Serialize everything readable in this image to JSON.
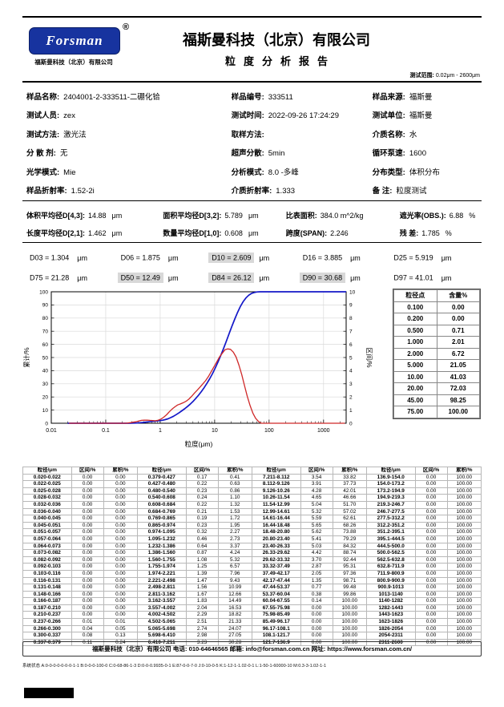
{
  "page": {
    "test_range_label": "测试范围:",
    "test_range_value": "0.02μm - 2600μm"
  },
  "header": {
    "logo_text": "Forsman",
    "registered_mark": "®",
    "logo_sub": "福斯曼科技（北京）有限公司",
    "company_title": "福斯曼科技（北京）有限公司",
    "report_title": "粒度分析报告"
  },
  "info": {
    "rows": [
      [
        {
          "label": "样品名称:",
          "value": "2404001-2-333511-二硼化铪"
        },
        {
          "label": "样品编号:",
          "value": "333511"
        },
        {
          "label": "样品来源:",
          "value": "福斯曼"
        }
      ],
      [
        {
          "label": "测试人员:",
          "value": "zex"
        },
        {
          "label": "测试时间:",
          "value": "2022-09-26 17:24:29"
        },
        {
          "label": "测试单位:",
          "value": "福斯曼"
        }
      ],
      [
        {
          "label": "测试方法:",
          "value": "激光法"
        },
        {
          "label": "取样方法:",
          "value": ""
        },
        {
          "label": "介质名称:",
          "value": "水"
        }
      ],
      [
        {
          "label": "分 散 剂:",
          "value": "无"
        },
        {
          "label": "超声分散:",
          "value": "5min"
        },
        {
          "label": "循环泵速:",
          "value": "1600"
        }
      ],
      [
        {
          "label": "光学模式:",
          "value": "Mie"
        },
        {
          "label": "分析模式:",
          "value": "8.0 -多峰"
        },
        {
          "label": "分布类型:",
          "value": "体积分布"
        }
      ],
      [
        {
          "label": "样品折射率:",
          "value": "1.52-2i"
        },
        {
          "label": "介质折射率:",
          "value": "1.333"
        },
        {
          "label": "备  注:",
          "value": "粒度测试"
        }
      ]
    ]
  },
  "averages": {
    "rows": [
      [
        {
          "label": "体积平均径D[4,3]:",
          "value": "14.88",
          "unit": "μm"
        },
        {
          "label": "面积平均径D[3,2]:",
          "value": "5.789",
          "unit": "μm"
        },
        {
          "label": "比表面积:",
          "value": "384.0 m^2/kg",
          "unit": ""
        },
        {
          "label": "遮光率(OBS.):",
          "value": "6.88",
          "unit": "%"
        }
      ],
      [
        {
          "label": "长度平均径D[2,1]:",
          "value": "1.462",
          "unit": "μm"
        },
        {
          "label": "数量平均径D[1,0]:",
          "value": "0.608",
          "unit": "μm"
        },
        {
          "label": "跨度(SPAN):",
          "value": "2.246",
          "unit": ""
        },
        {
          "label": "残  差:",
          "value": "1.785",
          "unit": "%"
        }
      ]
    ]
  },
  "dvalues": {
    "rows": [
      [
        {
          "text": "D03 = 1.304",
          "unit": "μm",
          "highlight": false
        },
        {
          "text": "D06 = 1.875",
          "unit": "μm",
          "highlight": false
        },
        {
          "text": "D10 = 2.609",
          "unit": "μm",
          "highlight": true
        },
        {
          "text": "D16 = 3.885",
          "unit": "μm",
          "highlight": false
        },
        {
          "text": "D25 = 5.919",
          "unit": "μm",
          "highlight": false
        }
      ],
      [
        {
          "text": "D75 = 21.28",
          "unit": "μm",
          "highlight": false
        },
        {
          "text": "D50 = 12.49",
          "unit": "μm",
          "highlight": true
        },
        {
          "text": "D84 = 26.12",
          "unit": "μm",
          "highlight": true
        },
        {
          "text": "D90 = 30.68",
          "unit": "μm",
          "highlight": true
        },
        {
          "text": "D97 = 41.01",
          "unit": "μm",
          "highlight": false
        }
      ]
    ]
  },
  "chart_data": {
    "type": "line",
    "x_scale": "log",
    "xlim": [
      0.01,
      2600
    ],
    "x_ticks": [
      0.01,
      0.1,
      1,
      10,
      100,
      1000
    ],
    "ylim_left": [
      0,
      100
    ],
    "left_tick_step": 10,
    "ylim_right": [
      0,
      10
    ],
    "right_tick_step": 1,
    "xlabel": "粒度(μm)",
    "ylabel_left": "累计/%",
    "ylabel_right": "区间/%",
    "grid": true,
    "legend": "none",
    "series": [
      {
        "name": "累计分布",
        "axis": "left",
        "color": "#1418c8",
        "x_from": "bin_upper_edge",
        "y_from": "cumulative_percent",
        "source": "distribution_table"
      },
      {
        "name": "区间分布",
        "axis": "right",
        "color": "#cf2828",
        "x_from": "bin_geometric_mean",
        "y_from": "interval_percent",
        "source": "distribution_table"
      }
    ]
  },
  "point_table": {
    "headers": [
      "粒径点",
      "含量%"
    ],
    "rows": [
      [
        "0.100",
        "0.00"
      ],
      [
        "0.200",
        "0.00"
      ],
      [
        "0.500",
        "0.71"
      ],
      [
        "1.000",
        "2.01"
      ],
      [
        "2.000",
        "6.72"
      ],
      [
        "5.000",
        "21.05"
      ],
      [
        "10.00",
        "41.03"
      ],
      [
        "20.00",
        "72.03"
      ],
      [
        "45.00",
        "98.25"
      ],
      [
        "75.00",
        "100.00"
      ]
    ]
  },
  "distribution_table": {
    "headers": [
      "粒径/μm",
      "区间/%",
      "累积/%"
    ],
    "groups": [
      [
        [
          "0.020-0.022",
          "0.00",
          "0.00"
        ],
        [
          "0.022-0.025",
          "0.00",
          "0.00"
        ],
        [
          "0.025-0.028",
          "0.00",
          "0.00"
        ],
        [
          "0.028-0.032",
          "0.00",
          "0.00"
        ],
        [
          "0.032-0.036",
          "0.00",
          "0.00"
        ],
        [
          "0.036-0.040",
          "0.00",
          "0.00"
        ],
        [
          "0.040-0.045",
          "0.00",
          "0.00"
        ],
        [
          "0.045-0.051",
          "0.00",
          "0.00"
        ],
        [
          "0.051-0.057",
          "0.00",
          "0.00"
        ],
        [
          "0.057-0.064",
          "0.00",
          "0.00"
        ],
        [
          "0.064-0.073",
          "0.00",
          "0.00"
        ],
        [
          "0.073-0.082",
          "0.00",
          "0.00"
        ],
        [
          "0.082-0.092",
          "0.00",
          "0.00"
        ],
        [
          "0.092-0.103",
          "0.00",
          "0.00"
        ],
        [
          "0.103-0.116",
          "0.00",
          "0.00"
        ],
        [
          "0.116-0.131",
          "0.00",
          "0.00"
        ],
        [
          "0.131-0.148",
          "0.00",
          "0.00"
        ],
        [
          "0.148-0.166",
          "0.00",
          "0.00"
        ],
        [
          "0.166-0.187",
          "0.00",
          "0.00"
        ],
        [
          "0.187-0.210",
          "0.00",
          "0.00"
        ],
        [
          "0.210-0.237",
          "0.00",
          "0.00"
        ],
        [
          "0.237-0.266",
          "0.01",
          "0.01"
        ],
        [
          "0.266-0.300",
          "0.04",
          "0.05"
        ],
        [
          "0.300-0.337",
          "0.08",
          "0.13"
        ],
        [
          "0.337-0.379",
          "0.11",
          "0.24"
        ]
      ],
      [
        [
          "0.379-0.427",
          "0.17",
          "0.41"
        ],
        [
          "0.427-0.480",
          "0.22",
          "0.63"
        ],
        [
          "0.480-0.540",
          "0.23",
          "0.86"
        ],
        [
          "0.540-0.608",
          "0.24",
          "1.10"
        ],
        [
          "0.608-0.684",
          "0.22",
          "1.32"
        ],
        [
          "0.684-0.769",
          "0.21",
          "1.53"
        ],
        [
          "0.769-0.865",
          "0.19",
          "1.72"
        ],
        [
          "0.865-0.974",
          "0.23",
          "1.95"
        ],
        [
          "0.974-1.095",
          "0.32",
          "2.27"
        ],
        [
          "1.095-1.232",
          "0.46",
          "2.73"
        ],
        [
          "1.232-1.386",
          "0.64",
          "3.37"
        ],
        [
          "1.386-1.560",
          "0.87",
          "4.24"
        ],
        [
          "1.560-1.755",
          "1.08",
          "5.32"
        ],
        [
          "1.755-1.974",
          "1.25",
          "6.57"
        ],
        [
          "1.974-2.221",
          "1.39",
          "7.96"
        ],
        [
          "2.221-2.498",
          "1.47",
          "9.43"
        ],
        [
          "2.498-2.811",
          "1.56",
          "10.99"
        ],
        [
          "2.811-3.162",
          "1.67",
          "12.66"
        ],
        [
          "3.162-3.557",
          "1.83",
          "14.49"
        ],
        [
          "3.557-4.002",
          "2.04",
          "16.53"
        ],
        [
          "4.002-4.502",
          "2.29",
          "18.82"
        ],
        [
          "4.502-5.065",
          "2.51",
          "21.33"
        ],
        [
          "5.065-5.698",
          "2.74",
          "24.07"
        ],
        [
          "5.698-6.410",
          "2.98",
          "27.05"
        ],
        [
          "6.410-7.211",
          "3.23",
          "30.28"
        ]
      ],
      [
        [
          "7.211-8.112",
          "3.54",
          "33.82"
        ],
        [
          "8.112-9.126",
          "3.91",
          "37.73"
        ],
        [
          "9.126-10.26",
          "4.28",
          "42.01"
        ],
        [
          "10.26-11.54",
          "4.65",
          "46.66"
        ],
        [
          "11.54-12.99",
          "5.04",
          "51.70"
        ],
        [
          "12.99-14.61",
          "5.32",
          "57.02"
        ],
        [
          "14.61-16.44",
          "5.59",
          "62.61"
        ],
        [
          "16.44-18.48",
          "5.65",
          "68.26"
        ],
        [
          "18.48-20.80",
          "5.62",
          "73.88"
        ],
        [
          "20.80-23.40",
          "5.41",
          "79.29"
        ],
        [
          "23.40-26.33",
          "5.03",
          "84.32"
        ],
        [
          "26.33-29.62",
          "4.42",
          "88.74"
        ],
        [
          "29.62-33.32",
          "3.70",
          "92.44"
        ],
        [
          "33.32-37.49",
          "2.87",
          "95.31"
        ],
        [
          "37.49-42.17",
          "2.05",
          "97.36"
        ],
        [
          "42.17-47.44",
          "1.35",
          "98.71"
        ],
        [
          "47.44-53.37",
          "0.77",
          "99.48"
        ],
        [
          "53.37-60.04",
          "0.38",
          "99.86"
        ],
        [
          "60.04-67.55",
          "0.14",
          "100.00"
        ],
        [
          "67.55-75.98",
          "0.00",
          "100.00"
        ],
        [
          "75.98-85.49",
          "0.00",
          "100.00"
        ],
        [
          "85.49-96.17",
          "0.00",
          "100.00"
        ],
        [
          "96.17-108.1",
          "0.00",
          "100.00"
        ],
        [
          "108.1-121.7",
          "0.00",
          "100.00"
        ],
        [
          "121.7-136.9",
          "0.00",
          "100.00"
        ]
      ],
      [
        [
          "136.9-154.0",
          "0.00",
          "100.00"
        ],
        [
          "154.0-173.2",
          "0.00",
          "100.00"
        ],
        [
          "173.2-194.9",
          "0.00",
          "100.00"
        ],
        [
          "194.9-219.3",
          "0.00",
          "100.00"
        ],
        [
          "219.3-246.7",
          "0.00",
          "100.00"
        ],
        [
          "246.7-277.5",
          "0.00",
          "100.00"
        ],
        [
          "277.5-312.2",
          "0.00",
          "100.00"
        ],
        [
          "312.2-351.2",
          "0.00",
          "100.00"
        ],
        [
          "351.2-395.1",
          "0.00",
          "100.00"
        ],
        [
          "395.1-444.5",
          "0.00",
          "100.00"
        ],
        [
          "444.5-500.0",
          "0.00",
          "100.00"
        ],
        [
          "500.0-562.5",
          "0.00",
          "100.00"
        ],
        [
          "562.5-632.8",
          "0.00",
          "100.00"
        ],
        [
          "632.8-711.9",
          "0.00",
          "100.00"
        ],
        [
          "711.9-800.9",
          "0.00",
          "100.00"
        ],
        [
          "800.9-900.9",
          "0.00",
          "100.00"
        ],
        [
          "900.9-1013",
          "0.00",
          "100.00"
        ],
        [
          "1013-1140",
          "0.00",
          "100.00"
        ],
        [
          "1140-1282",
          "0.00",
          "100.00"
        ],
        [
          "1282-1443",
          "0.00",
          "100.00"
        ],
        [
          "1443-1623",
          "0.00",
          "100.00"
        ],
        [
          "1623-1826",
          "0.00",
          "100.00"
        ],
        [
          "1826-2054",
          "0.00",
          "100.00"
        ],
        [
          "2054-2311",
          "0.00",
          "100.00"
        ],
        [
          "2311-2600",
          "0.00",
          "100.00"
        ]
      ]
    ]
  },
  "footer": {
    "text": "福斯曼科技（北京）有限公司   电话: 010-64646565   邮箱: info@forsman.com.cn   网址: https://www.forsman.com.cn/"
  },
  "system_status": "系统状态  A:0-0-0-0-0-0-0-1-1  B:0-0-0-100-0  C:0-68-86-1-3  D:0-0-0.9935-0-1  E:87-0-0-7-0  J:0-10-0-5  K:1-12-1-1.02-0-1  L:1-50-1-60000-10  M:0.3-3-1.02-1-1",
  "colors": {
    "logo_blue": "#17339f",
    "cumulative_curve": "#1418c8",
    "interval_curve": "#cf2828",
    "highlight_gray": "#d8d8d8"
  }
}
